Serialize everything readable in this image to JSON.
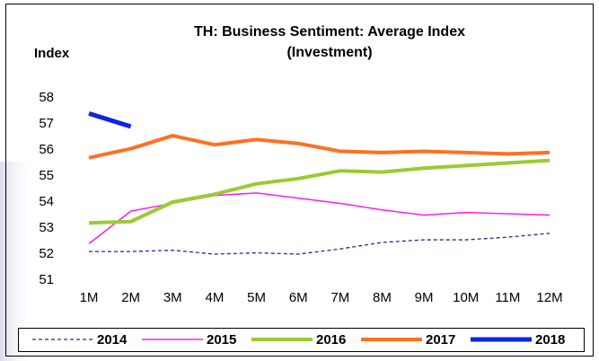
{
  "chart_data": {
    "type": "line",
    "title": "TH: Business Sentiment: Average Index",
    "subtitle": "(Investment)",
    "y_label": "Index",
    "categories": [
      "1M",
      "2M",
      "3M",
      "4M",
      "5M",
      "6M",
      "7M",
      "8M",
      "9M",
      "10M",
      "11M",
      "12M"
    ],
    "series": [
      {
        "name": "2014",
        "color": "#1f2f8f",
        "width": 1.3,
        "dash": "4,3",
        "values": [
          52.1,
          52.1,
          52.15,
          52.0,
          52.05,
          52.0,
          52.2,
          52.45,
          52.55,
          52.55,
          52.65,
          52.8
        ]
      },
      {
        "name": "2015",
        "color": "#ff19ff",
        "width": 1.5,
        "dash": "none",
        "values": [
          52.4,
          53.65,
          53.95,
          54.25,
          54.35,
          54.15,
          53.95,
          53.7,
          53.5,
          53.6,
          53.55,
          53.5
        ]
      },
      {
        "name": "2016",
        "color": "#99cc33",
        "width": 4,
        "dash": "none",
        "values": [
          53.2,
          53.25,
          54.0,
          54.3,
          54.7,
          54.9,
          55.2,
          55.15,
          55.3,
          55.4,
          55.5,
          55.6
        ]
      },
      {
        "name": "2017",
        "color": "#ff7020",
        "width": 4,
        "dash": "none",
        "values": [
          55.7,
          56.05,
          56.55,
          56.2,
          56.4,
          56.25,
          55.95,
          55.9,
          55.95,
          55.9,
          55.85,
          55.9
        ]
      },
      {
        "name": "2018",
        "color": "#0a24e6",
        "width": 5,
        "dash": "none",
        "values": [
          57.4,
          56.9,
          null,
          null,
          null,
          null,
          null,
          null,
          null,
          null,
          null,
          null
        ]
      }
    ],
    "ylim": [
      51,
      58
    ],
    "yticks": [
      51,
      52,
      53,
      54,
      55,
      56,
      57,
      58
    ],
    "grid": false,
    "legend": "bottom"
  }
}
